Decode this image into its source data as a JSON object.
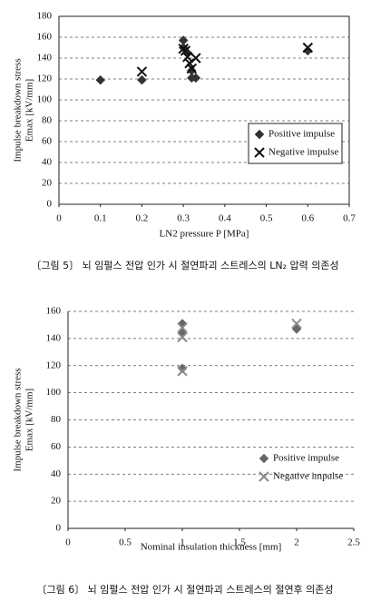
{
  "chart_data": [
    {
      "type": "scatter",
      "xlabel": "LN2 pressure P [MPa]",
      "ylabel": [
        "Impulse breakdown stress",
        "Emax [kV/mm]"
      ],
      "caption": "〔그림 5〕 뇌 임펄스 전압 인가 시 절연파괴 스트레스의 LN₂ 압력 의존성",
      "xlim": [
        0,
        0.7
      ],
      "xticks": [
        0,
        0.1,
        0.2,
        0.3,
        0.4,
        0.5,
        0.6,
        0.7
      ],
      "ylim": [
        0,
        180
      ],
      "yticks": [
        0,
        20,
        40,
        60,
        80,
        100,
        120,
        140,
        160,
        180
      ],
      "grid": true,
      "frame": true,
      "legend": "lower right",
      "legend_box": true,
      "series": [
        {
          "name": "Positive impulse",
          "color": "#333333",
          "marker": "diamond",
          "x": [
            0.1,
            0.2,
            0.3,
            0.3,
            0.31,
            0.32,
            0.32,
            0.33,
            0.6
          ],
          "values": [
            119,
            119,
            157,
            150,
            145,
            128,
            121,
            121,
            147
          ]
        },
        {
          "name": "Negative impulse",
          "color": "#111111",
          "marker": "x",
          "x": [
            0.2,
            0.3,
            0.305,
            0.31,
            0.315,
            0.32,
            0.33,
            0.6
          ],
          "values": [
            127,
            149,
            147,
            141,
            135,
            130,
            140,
            150
          ]
        }
      ]
    },
    {
      "type": "scatter",
      "xlabel": "Nominal insulation thickness [mm]",
      "ylabel": [
        "Impulse breakdown stress",
        "Emax [kV/mm]"
      ],
      "caption": "〔그림 6〕 뇌 임펄스 전압 인가 시 절연파괴 스트레스의 절연후 의존성",
      "xlim": [
        0,
        2.5
      ],
      "xticks": [
        0,
        0.5,
        1,
        1.5,
        2,
        2.5
      ],
      "ylim": [
        0,
        160
      ],
      "yticks": [
        0,
        20,
        40,
        60,
        80,
        100,
        120,
        140,
        160
      ],
      "grid": true,
      "frame": false,
      "legend": "lower right",
      "legend_box": false,
      "series": [
        {
          "name": "Positive impulse",
          "color": "#666666",
          "marker": "diamond",
          "x": [
            1,
            1,
            1,
            2
          ],
          "values": [
            151,
            145,
            118,
            147
          ]
        },
        {
          "name": "Negative impulse",
          "color": "#8a8a8a",
          "marker": "x",
          "x": [
            1,
            1,
            1,
            2
          ],
          "values": [
            148,
            141,
            116,
            151
          ]
        }
      ]
    }
  ]
}
